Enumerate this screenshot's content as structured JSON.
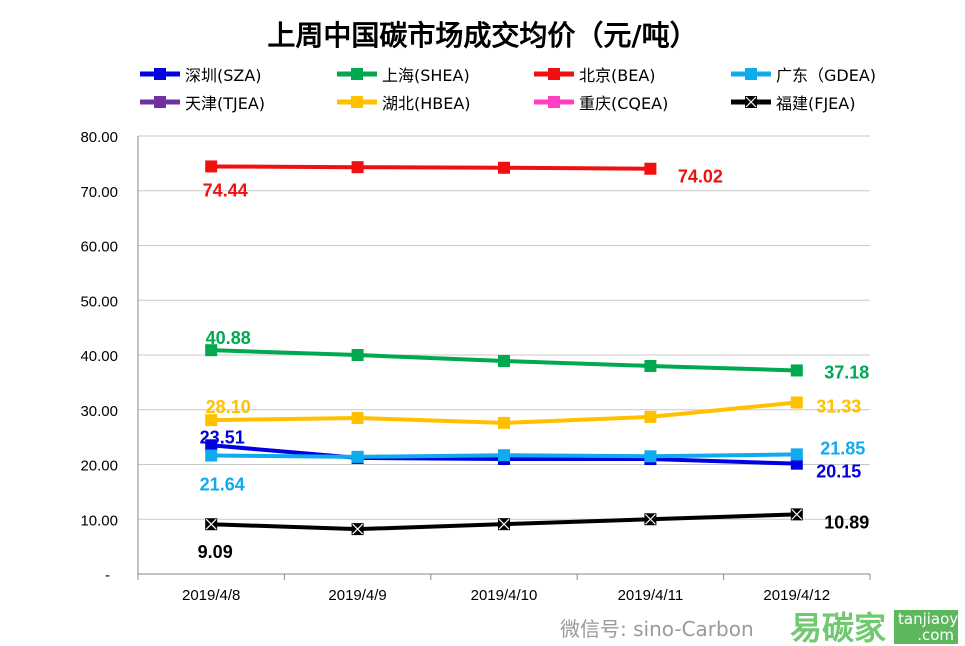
{
  "chart_data": {
    "type": "line",
    "title": "上周中国碳市场成交均价（元/吨）",
    "xlabel": "",
    "ylabel": "",
    "categories": [
      "2019/4/8",
      "2019/4/9",
      "2019/4/10",
      "2019/4/11",
      "2019/4/12"
    ],
    "ylim": [
      0,
      80
    ],
    "yticks": [
      "-",
      "10.00",
      "20.00",
      "30.00",
      "40.00",
      "50.00",
      "60.00",
      "70.00",
      "80.00"
    ],
    "grid": true,
    "legend_position": "top",
    "series": [
      {
        "name": "深圳(SZA)",
        "color": "#0000e0",
        "marker": "square",
        "values": [
          23.51,
          21.2,
          21.0,
          21.0,
          20.15
        ],
        "labels": [
          "23.51",
          null,
          null,
          null,
          "20.15"
        ]
      },
      {
        "name": "上海(SHEA)",
        "color": "#00a850",
        "marker": "square",
        "values": [
          40.88,
          40.0,
          38.9,
          38.0,
          37.18
        ],
        "labels": [
          "40.88",
          null,
          null,
          null,
          "37.18"
        ]
      },
      {
        "name": "北京(BEA)",
        "color": "#f01010",
        "marker": "square",
        "values": [
          74.44,
          74.3,
          74.2,
          74.02,
          null
        ],
        "labels": [
          "74.44",
          null,
          null,
          "74.02",
          null
        ]
      },
      {
        "name": "广东（GDEA)",
        "color": "#10aaee",
        "marker": "square",
        "values": [
          21.64,
          21.4,
          21.7,
          21.5,
          21.85
        ],
        "labels": [
          "21.64",
          null,
          null,
          null,
          "21.85"
        ]
      },
      {
        "name": "天津(TJEA)",
        "color": "#7030a0",
        "marker": "square",
        "values": [
          null,
          null,
          null,
          null,
          null
        ],
        "labels": [
          null,
          null,
          null,
          null,
          null
        ]
      },
      {
        "name": "湖北(HBEA)",
        "color": "#ffc000",
        "marker": "square",
        "values": [
          28.1,
          28.5,
          27.6,
          28.7,
          31.33
        ],
        "labels": [
          "28.10",
          null,
          null,
          null,
          "31.33"
        ]
      },
      {
        "name": "重庆(CQEA)",
        "color": "#ff40c0",
        "marker": "square",
        "values": [
          null,
          null,
          null,
          null,
          null
        ],
        "labels": [
          null,
          null,
          null,
          null,
          null
        ]
      },
      {
        "name": "福建(FJEA)",
        "color": "#000000",
        "marker": "x-square",
        "values": [
          9.09,
          8.2,
          9.1,
          10.0,
          10.89
        ],
        "labels": [
          "9.09",
          null,
          null,
          null,
          "10.89"
        ]
      }
    ]
  },
  "watermark": {
    "wechat": "微信号: sino-Carbon",
    "brand": "易碳家",
    "site": "tanjiaoyi .com"
  }
}
